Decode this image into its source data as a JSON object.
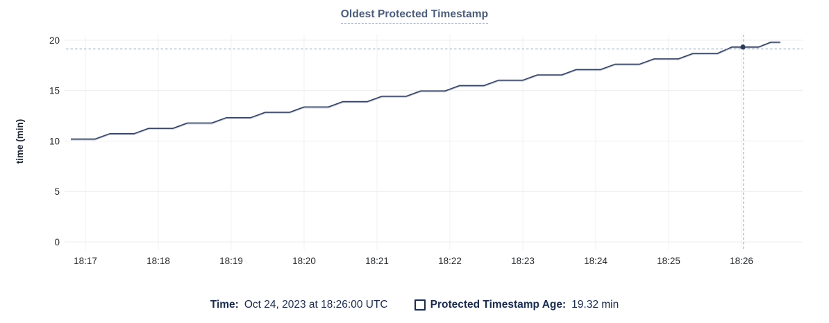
{
  "chart_data": {
    "type": "line",
    "title": "Oldest Protected Timestamp",
    "ylabel": "time (min)",
    "ylim": [
      0,
      20
    ],
    "y_ticks": [
      0,
      5,
      10,
      15,
      20
    ],
    "x_ticks": [
      "18:17",
      "18:18",
      "18:19",
      "18:20",
      "18:21",
      "18:22",
      "18:23",
      "18:24",
      "18:25",
      "18:26"
    ],
    "x_tick_interval": "1 min",
    "grid": true,
    "legend_position": "bottom",
    "series": [
      {
        "name": "Protected Timestamp Age",
        "unit": "min",
        "x_unit": "seconds after 18:17",
        "points": [
          [
            -12,
            10.2
          ],
          [
            8,
            10.2
          ],
          [
            20,
            10.73
          ],
          [
            40,
            10.73
          ],
          [
            52,
            11.26
          ],
          [
            72,
            11.26
          ],
          [
            84,
            11.79
          ],
          [
            104,
            11.79
          ],
          [
            116,
            12.32
          ],
          [
            136,
            12.32
          ],
          [
            148,
            12.85
          ],
          [
            168,
            12.85
          ],
          [
            180,
            13.38
          ],
          [
            200,
            13.38
          ],
          [
            212,
            13.91
          ],
          [
            232,
            13.91
          ],
          [
            244,
            14.44
          ],
          [
            264,
            14.44
          ],
          [
            276,
            14.97
          ],
          [
            296,
            14.97
          ],
          [
            308,
            15.5
          ],
          [
            328,
            15.5
          ],
          [
            340,
            16.03
          ],
          [
            360,
            16.03
          ],
          [
            372,
            16.56
          ],
          [
            392,
            16.56
          ],
          [
            404,
            17.09
          ],
          [
            424,
            17.09
          ],
          [
            436,
            17.62
          ],
          [
            456,
            17.62
          ],
          [
            468,
            18.15
          ],
          [
            488,
            18.15
          ],
          [
            500,
            18.68
          ],
          [
            520,
            18.68
          ],
          [
            532,
            19.32
          ],
          [
            554,
            19.32
          ],
          [
            564,
            19.8
          ],
          [
            572,
            19.8
          ]
        ]
      }
    ],
    "hover": {
      "time": "Oct 24, 2023 at 18:26:00 UTC",
      "seconds_after_1817": 540,
      "value_min": 19.32
    },
    "colors": {
      "line": "#3a4560",
      "line_halo": "#bcc8da",
      "crosshair": "#9fb2c2",
      "dot": "#2c3a55",
      "grid_h": "#ececec",
      "grid_v": "#f0f0f1",
      "title": "#4c5c7a",
      "text": "#1b2b4c",
      "tick_text": "#26282b"
    }
  },
  "footer": {
    "time_label": "Time:",
    "time_value": "Oct 24, 2023 at 18:26:00 UTC",
    "series_label": "Protected Timestamp Age:",
    "series_value": "19.32 min"
  }
}
